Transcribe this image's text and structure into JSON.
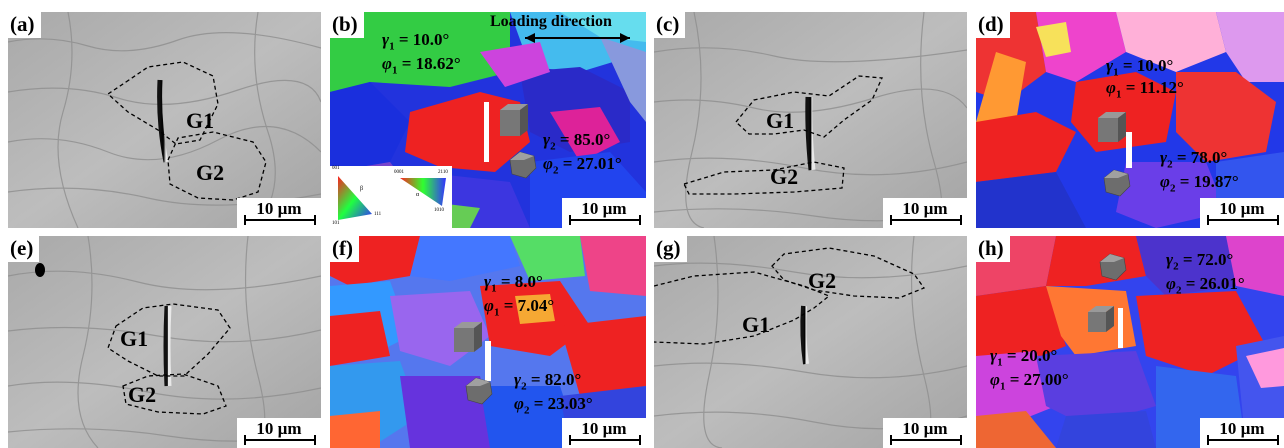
{
  "scale_label": "10 µm",
  "loading_direction": "Loading direction",
  "panels": {
    "a": {
      "tag": "(a)",
      "g1": "G1",
      "g2": "G2"
    },
    "b": {
      "tag": "(b)",
      "gamma_sym": "γ",
      "phi_sym": "φ",
      "n1": "1",
      "n2": "2",
      "gamma1_val": " = 10.0°",
      "phi1_val": " = 18.62°",
      "gamma2_val": " = 85.0°",
      "phi2_val": " = 27.01°",
      "key_labels": [
        "001",
        "β",
        "111",
        "101",
        "0001",
        "α",
        "1010",
        "2110"
      ]
    },
    "c": {
      "tag": "(c)",
      "g1": "G1",
      "g2": "G2"
    },
    "d": {
      "tag": "(d)",
      "gamma_sym": "γ",
      "phi_sym": "φ",
      "n1": "1",
      "n2": "2",
      "gamma1_val": " = 10.0°",
      "phi1_val": " = 11.12°",
      "gamma2_val": " = 78.0°",
      "phi2_val": " = 19.87°"
    },
    "e": {
      "tag": "(e)",
      "g1": "G1",
      "g2": "G2"
    },
    "f": {
      "tag": "(f)",
      "gamma_sym": "γ",
      "phi_sym": "φ",
      "n1": "1",
      "n2": "2",
      "gamma1_val": " = 8.0°",
      "phi1_val": " = 7.04°",
      "gamma2_val": " = 82.0°",
      "phi2_val": " = 23.03°"
    },
    "g": {
      "tag": "(g)",
      "g1": "G1",
      "g2": "G2"
    },
    "h": {
      "tag": "(h)",
      "gamma_sym": "γ",
      "phi_sym": "φ",
      "n1": "1",
      "n2": "2",
      "gamma1_val": " = 20.0°",
      "phi1_val": " = 27.00°",
      "gamma2_val": " = 72.0°",
      "phi2_val": " = 26.01°"
    }
  }
}
